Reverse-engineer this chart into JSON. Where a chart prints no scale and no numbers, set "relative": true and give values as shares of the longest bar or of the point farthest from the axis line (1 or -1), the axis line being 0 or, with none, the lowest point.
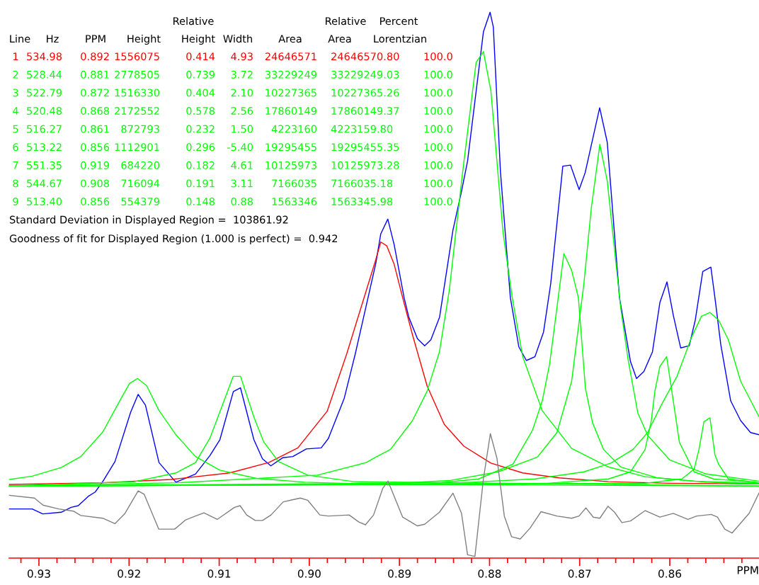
{
  "chart_data": {
    "type": "line",
    "relative": true,
    "tick_labels": "x",
    "xlabel": "PPM",
    "xlim": [
      0.9333,
      0.8501
    ],
    "xticks": [
      {
        "value": 0.932,
        "label": null
      },
      0.93,
      {
        "value": 0.928,
        "label": null
      },
      {
        "value": 0.926,
        "label": null
      },
      {
        "value": 0.924,
        "label": null
      },
      {
        "value": 0.922,
        "label": null
      },
      0.92,
      {
        "value": 0.918,
        "label": null
      },
      {
        "value": 0.916,
        "label": null
      },
      {
        "value": 0.914,
        "label": null
      },
      {
        "value": 0.912,
        "label": null
      },
      0.91,
      {
        "value": 0.908,
        "label": null
      },
      {
        "value": 0.906,
        "label": null
      },
      {
        "value": 0.904,
        "label": null
      },
      {
        "value": 0.902,
        "label": null
      },
      {
        "value": 0.9,
        "label": "0.90"
      },
      {
        "value": 0.898,
        "label": null
      },
      {
        "value": 0.896,
        "label": null
      },
      {
        "value": 0.894,
        "label": null
      },
      {
        "value": 0.892,
        "label": null
      },
      0.89,
      {
        "value": 0.888,
        "label": null
      },
      {
        "value": 0.886,
        "label": null
      },
      {
        "value": 0.884,
        "label": null
      },
      {
        "value": 0.882,
        "label": null
      },
      0.88,
      {
        "value": 0.878,
        "label": null
      },
      {
        "value": 0.876,
        "label": null
      },
      {
        "value": 0.874,
        "label": null
      },
      {
        "value": 0.872,
        "label": null
      },
      0.87,
      {
        "value": 0.868,
        "label": null
      },
      {
        "value": 0.866,
        "label": null
      },
      {
        "value": 0.864,
        "label": null
      },
      {
        "value": 0.862,
        "label": null
      },
      0.86,
      {
        "value": 0.858,
        "label": null
      },
      {
        "value": 0.856,
        "label": null
      },
      {
        "value": 0.854,
        "label": null
      },
      {
        "value": 0.852,
        "label": null
      }
    ],
    "series": [
      {
        "color": "#0000ff",
        "x": [
          0.93327,
          0.93075,
          0.92958,
          0.92753,
          0.92643,
          0.92564,
          0.92454,
          0.92376,
          0.92289,
          0.92156,
          0.91983,
          0.91899,
          0.91818,
          0.91668,
          0.9148,
          0.91263,
          0.91102,
          0.90992,
          0.90843,
          0.90764,
          0.90615,
          0.9052,
          0.90427,
          0.90293,
          0.90183,
          0.90033,
          0.89868,
          0.89789,
          0.89612,
          0.8949,
          0.89262,
          0.89207,
          0.89129,
          0.89058,
          0.88948,
          0.88895,
          0.888,
          0.8872,
          0.88651,
          0.88555,
          0.88406,
          0.88311,
          0.88244,
          0.88068,
          0.87994,
          0.87958,
          0.87879,
          0.87769,
          0.87675,
          0.87591,
          0.87496,
          0.87401,
          0.87321,
          0.87187,
          0.87102,
          0.87006,
          0.86939,
          0.86778,
          0.86694,
          0.86558,
          0.86436,
          0.86369,
          0.86287,
          0.86192,
          0.8611,
          0.86031,
          0.85961,
          0.85879,
          0.85784,
          0.85717,
          0.85634,
          0.85544,
          0.85499,
          0.85434,
          0.85324,
          0.85214,
          0.85104,
          0.8501
        ],
        "values": [
          0.09,
          0.09,
          0.081,
          0.084,
          0.093,
          0.096,
          0.113,
          0.121,
          0.141,
          0.177,
          0.267,
          0.3,
          0.28,
          0.175,
          0.139,
          0.154,
          0.188,
          0.217,
          0.305,
          0.312,
          0.217,
          0.182,
          0.169,
          0.184,
          0.186,
          0.2,
          0.202,
          0.219,
          0.293,
          0.374,
          0.54,
          0.594,
          0.621,
          0.574,
          0.477,
          0.441,
          0.402,
          0.389,
          0.4,
          0.441,
          0.601,
          0.672,
          0.727,
          0.964,
          1.0,
          0.973,
          0.708,
          0.477,
          0.387,
          0.362,
          0.369,
          0.414,
          0.503,
          0.718,
          0.72,
          0.675,
          0.706,
          0.825,
          0.762,
          0.477,
          0.36,
          0.329,
          0.342,
          0.378,
          0.468,
          0.506,
          0.445,
          0.385,
          0.389,
          0.436,
          0.525,
          0.533,
          0.477,
          0.391,
          0.288,
          0.252,
          0.23,
          0.226
        ]
      },
      {
        "color": "#ff0000",
        "x": [
          0.93327,
          0.92292,
          0.91535,
          0.90884,
          0.90451,
          0.90127,
          0.89802,
          0.89585,
          0.89262,
          0.89207,
          0.8914,
          0.89058,
          0.88964,
          0.88855,
          0.88692,
          0.88502,
          0.88285,
          0.87985,
          0.87632,
          0.87225,
          0.86681,
          0.86002,
          0.8501
        ],
        "values": [
          0.135,
          0.138,
          0.144,
          0.156,
          0.175,
          0.202,
          0.269,
          0.374,
          0.547,
          0.579,
          0.572,
          0.538,
          0.477,
          0.409,
          0.315,
          0.245,
          0.205,
          0.174,
          0.156,
          0.147,
          0.14,
          0.137,
          0.136
        ]
      },
      {
        "color": "#00ff00",
        "x": [
          0.93327,
          0.93077,
          0.92753,
          0.92536,
          0.92292,
          0.92077,
          0.91994,
          0.91905,
          0.91805,
          0.9167,
          0.9148,
          0.91263,
          0.90992,
          0.90586,
          0.90049,
          0.89184,
          0.8501
        ],
        "values": [
          0.144,
          0.15,
          0.166,
          0.186,
          0.231,
          0.296,
          0.32,
          0.329,
          0.316,
          0.271,
          0.226,
          0.186,
          0.161,
          0.146,
          0.139,
          0.135,
          0.132
        ]
      },
      {
        "color": "#00ff00",
        "x": [
          0.93327,
          0.9194,
          0.9148,
          0.91263,
          0.91102,
          0.90965,
          0.90844,
          0.90763,
          0.90614,
          0.90506,
          0.90343,
          0.90018,
          0.89504,
          0.8501
        ],
        "values": [
          0.132,
          0.14,
          0.156,
          0.175,
          0.22,
          0.28,
          0.333,
          0.333,
          0.258,
          0.213,
          0.177,
          0.152,
          0.14,
          0.132
        ]
      },
      {
        "color": "#00ff00",
        "x": [
          0.93327,
          0.91463,
          0.8991,
          0.89369,
          0.89262,
          0.891,
          0.88855,
          0.88692,
          0.88556,
          0.88447,
          0.88298,
          0.88149,
          0.88068,
          0.87985,
          0.8785,
          0.87748,
          0.87632,
          0.87415,
          0.87089,
          0.86681,
          0.86274,
          0.8573,
          0.8501
        ],
        "values": [
          0.132,
          0.138,
          0.152,
          0.175,
          0.185,
          0.199,
          0.252,
          0.306,
          0.378,
          0.49,
          0.708,
          0.908,
          0.928,
          0.856,
          0.596,
          0.477,
          0.369,
          0.27,
          0.201,
          0.167,
          0.149,
          0.141,
          0.137
        ]
      },
      {
        "color": "#00ff00",
        "x": [
          0.93327,
          0.8872,
          0.88121,
          0.87741,
          0.87524,
          0.87415,
          0.87333,
          0.87238,
          0.87175,
          0.87089,
          0.87014,
          0.86936,
          0.86857,
          0.86735,
          0.86545,
          0.86138,
          0.85594,
          0.8501
        ],
        "values": [
          0.132,
          0.135,
          0.145,
          0.172,
          0.234,
          0.288,
          0.356,
          0.477,
          0.558,
          0.527,
          0.477,
          0.311,
          0.248,
          0.199,
          0.167,
          0.147,
          0.139,
          0.136
        ]
      },
      {
        "color": "#00ff00",
        "x": [
          0.93327,
          0.89262,
          0.88447,
          0.87904,
          0.87469,
          0.87252,
          0.87089,
          0.86953,
          0.86871,
          0.86776,
          0.86694,
          0.86545,
          0.86464,
          0.86355,
          0.86246,
          0.86002,
          0.85594,
          0.8501
        ],
        "values": [
          0.132,
          0.135,
          0.142,
          0.158,
          0.185,
          0.23,
          0.324,
          0.503,
          0.641,
          0.758,
          0.691,
          0.459,
          0.365,
          0.266,
          0.225,
          0.18,
          0.154,
          0.141
        ]
      },
      {
        "color": "#00ff00",
        "x": [
          0.93327,
          0.8736,
          0.86681,
          0.86436,
          0.86274,
          0.86205,
          0.86165,
          0.8611,
          0.86035,
          0.86002,
          0.85893,
          0.8573,
          0.85513,
          0.8501
        ],
        "values": [
          0.132,
          0.137,
          0.145,
          0.158,
          0.199,
          0.252,
          0.306,
          0.351,
          0.369,
          0.333,
          0.212,
          0.158,
          0.145,
          0.138
        ]
      },
      {
        "color": "#00ff00",
        "x": [
          0.93327,
          0.88311,
          0.87496,
          0.86953,
          0.86654,
          0.86409,
          0.86246,
          0.86083,
          0.8592,
          0.85757,
          0.85649,
          0.85554,
          0.85458,
          0.8535,
          0.85214,
          0.8501
        ],
        "values": [
          0.132,
          0.138,
          0.145,
          0.158,
          0.174,
          0.199,
          0.23,
          0.284,
          0.333,
          0.405,
          0.443,
          0.45,
          0.436,
          0.4,
          0.324,
          0.259
        ]
      },
      {
        "color": "#00ff00",
        "x": [
          0.93327,
          0.86274,
          0.85866,
          0.8573,
          0.85676,
          0.85621,
          0.85554,
          0.85499,
          0.85458,
          0.8535,
          0.8501
        ],
        "values": [
          0.132,
          0.137,
          0.145,
          0.163,
          0.199,
          0.25,
          0.257,
          0.189,
          0.172,
          0.145,
          0.138
        ]
      },
      {
        "color": "#808080",
        "x": [
          0.93327,
          0.9305,
          0.92955,
          0.9278,
          0.92617,
          0.92536,
          0.92292,
          0.92157,
          0.92049,
          0.91899,
          0.91833,
          0.9167,
          0.91494,
          0.91372,
          0.91263,
          0.91169,
          0.9102,
          0.9083,
          0.90768,
          0.90695,
          0.906,
          0.90519,
          0.90425,
          0.90289,
          0.90181,
          0.90099,
          0.90018,
          0.89883,
          0.89789,
          0.89558,
          0.8945,
          0.89377,
          0.89287,
          0.89184,
          0.89127,
          0.88964,
          0.888,
          0.8872,
          0.88556,
          0.88406,
          0.88311,
          0.88244,
          0.88162,
          0.88068,
          0.87991,
          0.87918,
          0.87836,
          0.87755,
          0.87659,
          0.8755,
          0.87428,
          0.87252,
          0.87089,
          0.87007,
          0.86931,
          0.86849,
          0.86776,
          0.86686,
          0.86613,
          0.86531,
          0.86436,
          0.86274,
          0.8611,
          0.85961,
          0.85798,
          0.85703,
          0.85539,
          0.85471,
          0.8539,
          0.85308,
          0.85119,
          0.8501
        ],
        "values": [
          0.115,
          0.11,
          0.097,
          0.09,
          0.086,
          0.078,
          0.073,
          0.063,
          0.081,
          0.123,
          0.117,
          0.053,
          0.053,
          0.07,
          0.077,
          0.083,
          0.071,
          0.093,
          0.096,
          0.079,
          0.069,
          0.069,
          0.079,
          0.103,
          0.107,
          0.11,
          0.106,
          0.079,
          0.077,
          0.079,
          0.066,
          0.061,
          0.079,
          0.128,
          0.141,
          0.075,
          0.059,
          0.062,
          0.084,
          0.119,
          0.082,
          0.006,
          0.003,
          0.145,
          0.228,
          0.183,
          0.077,
          0.039,
          0.035,
          0.055,
          0.085,
          0.077,
          0.073,
          0.077,
          0.092,
          0.075,
          0.073,
          0.095,
          0.084,
          0.065,
          0.068,
          0.087,
          0.075,
          0.082,
          0.071,
          0.077,
          0.08,
          0.075,
          0.053,
          0.046,
          0.082,
          0.119
        ]
      }
    ],
    "annotations": [
      "Relative",
      "Relative",
      "Percent",
      "Line",
      "Hz",
      "PPM",
      "Height",
      "Height",
      "Width",
      "Area",
      "Area",
      "Lorentzian",
      "1",
      "534.98",
      "0.892",
      "1556075",
      "0.414",
      "4.93",
      "24646571",
      "24646570.80",
      "100.0",
      "2",
      "528.44",
      "0.881",
      "2778505",
      "0.739",
      "3.72",
      "33229249",
      "33229249.03",
      "100.0",
      "3",
      "522.79",
      "0.872",
      "1516330",
      "0.404",
      "2.10",
      "10227365",
      "10227365.26",
      "100.0",
      "4",
      "520.48",
      "0.868",
      "2172552",
      "0.578",
      "2.56",
      "17860149",
      "17860149.37",
      "100.0",
      "5",
      "516.27",
      "0.861",
      "872793",
      "0.232",
      "1.50",
      "4223160",
      "4223159.80",
      "100.0",
      "6",
      "513.22",
      "0.856",
      "1112901",
      "0.296",
      "-5.40",
      "19295455",
      "19295455.35",
      "100.0",
      "7",
      "551.35",
      "0.919",
      "684220",
      "0.182",
      "4.61",
      "10125973",
      "10125973.28",
      "100.0",
      "8",
      "544.67",
      "0.908",
      "716094",
      "0.191",
      "3.11",
      "7166035",
      "7166035.18",
      "100.0",
      "9",
      "513.40",
      "0.856",
      "554379",
      "0.148",
      "0.88",
      "1563346",
      "1563345.98",
      "100.0",
      "Standard Deviation in Displayed Region =  103861.92",
      "Goodness of fit for Displayed Region (1.000 is perfect) =  0.942"
    ]
  }
}
